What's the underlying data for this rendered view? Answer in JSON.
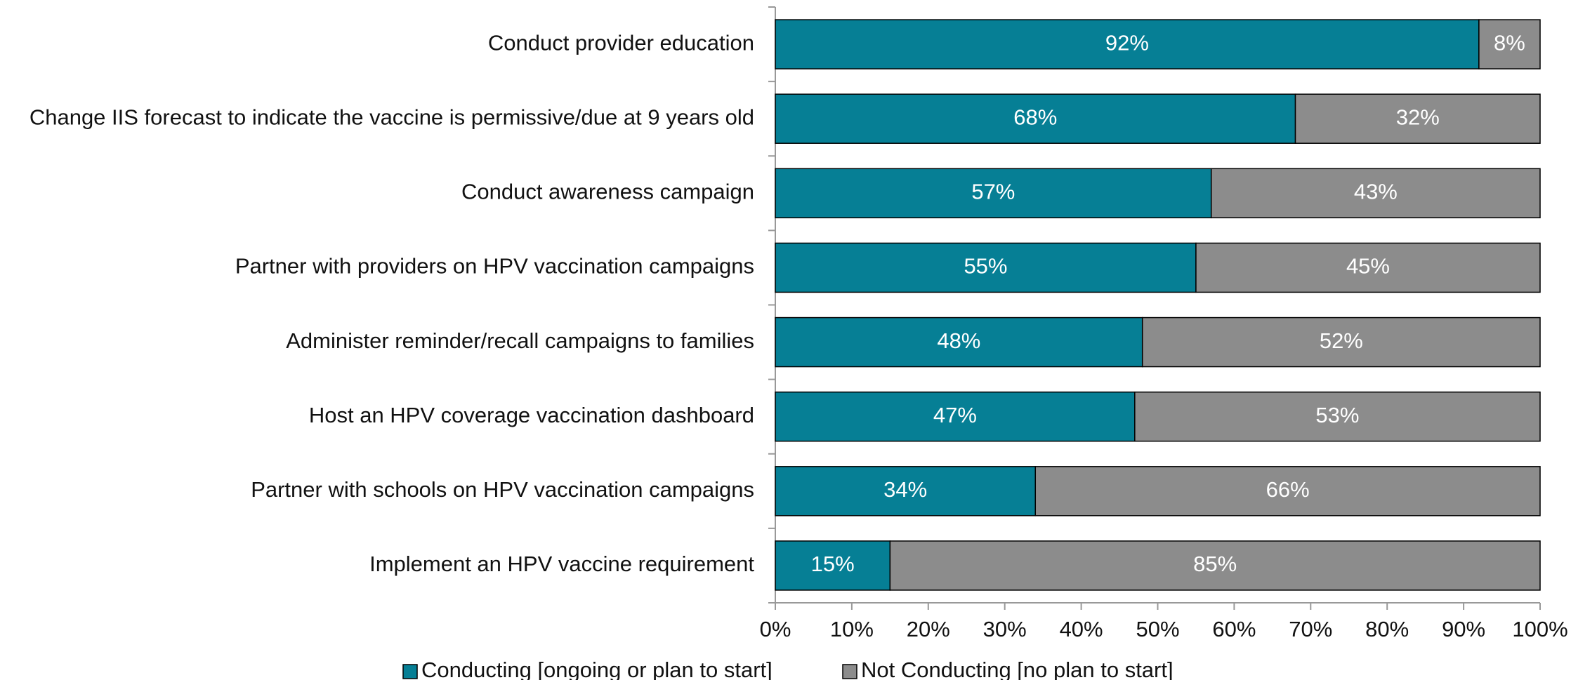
{
  "chart_data": {
    "type": "stacked-bar-horizontal",
    "categories": [
      "Conduct provider education",
      "Change IIS forecast to indicate the vaccine is permissive/due at 9 years old",
      "Conduct awareness campaign",
      "Partner with providers on HPV vaccination campaigns",
      "Administer reminder/recall campaigns to families",
      "Host an HPV coverage vaccination dashboard",
      "Partner with schools on HPV vaccination campaigns",
      "Implement an HPV vaccine requirement"
    ],
    "series": [
      {
        "name": "Conducting [ongoing or plan to start]",
        "color": "#067f95",
        "values": [
          92,
          68,
          57,
          55,
          48,
          47,
          34,
          15
        ],
        "value_labels": [
          "92%",
          "68%",
          "57%",
          "55%",
          "48%",
          "47%",
          "34%",
          "15%"
        ]
      },
      {
        "name": "Not Conducting [no plan to start]",
        "color": "#8c8c8c",
        "values": [
          8,
          32,
          43,
          45,
          52,
          53,
          66,
          85
        ],
        "value_labels": [
          "8%",
          "32%",
          "43%",
          "45%",
          "52%",
          "53%",
          "66%",
          "85%"
        ]
      }
    ],
    "xlim": [
      0,
      100
    ],
    "xticks": [
      {
        "value": 0,
        "label": "0%"
      },
      {
        "value": 10,
        "label": "10%"
      },
      {
        "value": 20,
        "label": "20%"
      },
      {
        "value": 30,
        "label": "30%"
      },
      {
        "value": 40,
        "label": "40%"
      },
      {
        "value": 50,
        "label": "50%"
      },
      {
        "value": 60,
        "label": "60%"
      },
      {
        "value": 70,
        "label": "70%"
      },
      {
        "value": 80,
        "label": "80%"
      },
      {
        "value": 90,
        "label": "90%"
      },
      {
        "value": 100,
        "label": "100%"
      }
    ],
    "legend": "bottom"
  }
}
